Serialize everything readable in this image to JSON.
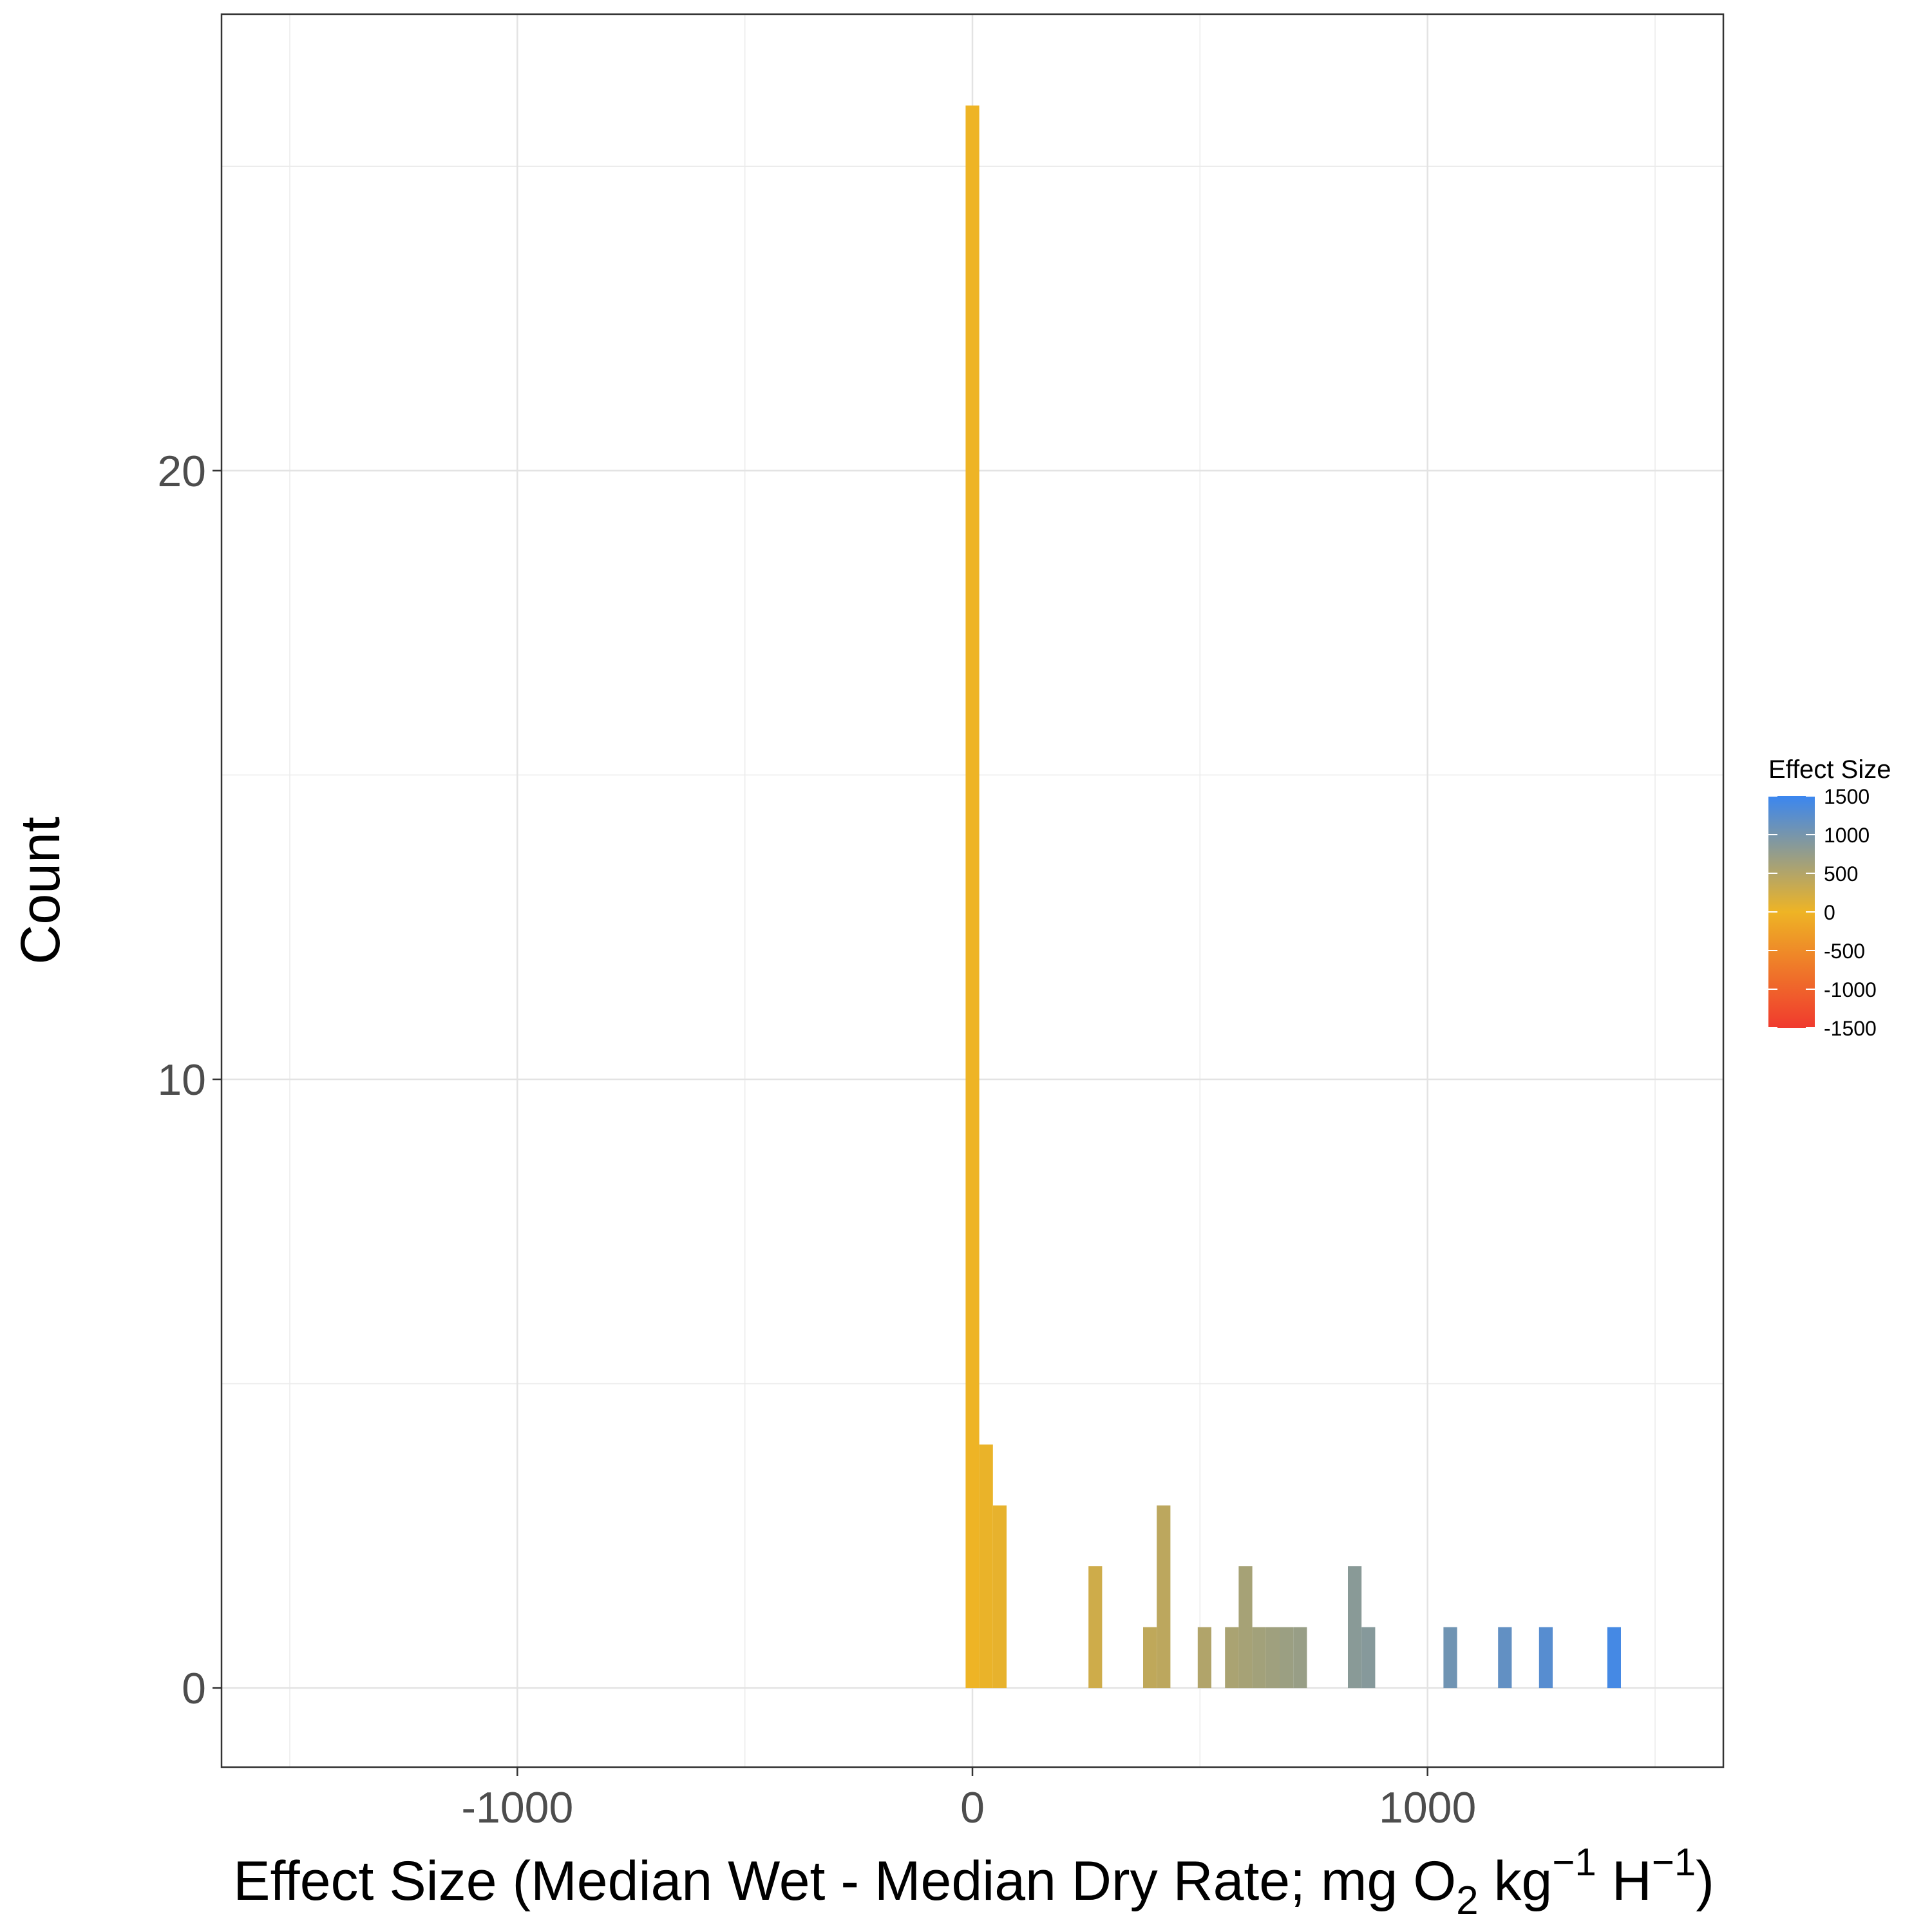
{
  "chart_data": {
    "type": "bar",
    "subtype": "histogram",
    "title": "",
    "xlabel": {
      "main": "Effect Size (Median Wet - Median Dry Rate; mg O",
      "sub": "2",
      "unit1": " kg",
      "sup1": "−1",
      "unit2": " H",
      "sup2": "−1",
      "close": ")"
    },
    "ylabel": "Count",
    "xlim": [
      -1650,
      1650
    ],
    "ylim": [
      -1.3,
      27.5
    ],
    "x_ticks": [
      -1000,
      0,
      1000
    ],
    "x_tick_labels": [
      "-1000",
      "0",
      "1000"
    ],
    "x_minor_ticks": [
      -1500,
      -500,
      500,
      1500
    ],
    "y_ticks": [
      0,
      10,
      20
    ],
    "y_tick_labels": [
      "0",
      "10",
      "20"
    ],
    "y_minor_ticks": [
      5,
      15,
      25
    ],
    "grid": true,
    "bin_width": 30,
    "bins": [
      {
        "x": 0,
        "count": 26
      },
      {
        "x": 30,
        "count": 4
      },
      {
        "x": 60,
        "count": 3
      },
      {
        "x": 270,
        "count": 2
      },
      {
        "x": 390,
        "count": 1
      },
      {
        "x": 420,
        "count": 3
      },
      {
        "x": 510,
        "count": 1
      },
      {
        "x": 570,
        "count": 1
      },
      {
        "x": 600,
        "count": 2
      },
      {
        "x": 630,
        "count": 1
      },
      {
        "x": 660,
        "count": 1
      },
      {
        "x": 690,
        "count": 1
      },
      {
        "x": 720,
        "count": 1
      },
      {
        "x": 840,
        "count": 2
      },
      {
        "x": 870,
        "count": 1
      },
      {
        "x": 1050,
        "count": 1
      },
      {
        "x": 1170,
        "count": 1
      },
      {
        "x": 1260,
        "count": 1
      },
      {
        "x": 1410,
        "count": 1
      }
    ],
    "legend": {
      "title": "Effect Size",
      "position": "right",
      "type": "colorbar",
      "range": [
        -1500,
        1500
      ],
      "breaks": [
        1500,
        1000,
        500,
        0,
        -500,
        -1000,
        -1500
      ],
      "break_labels": [
        "1500",
        "1000",
        "500",
        "0",
        "-500",
        "-1000",
        "-1500"
      ],
      "colors": {
        "low": "#f03a2e",
        "mid": "#eeb425",
        "high": "#3a86f0"
      }
    }
  }
}
